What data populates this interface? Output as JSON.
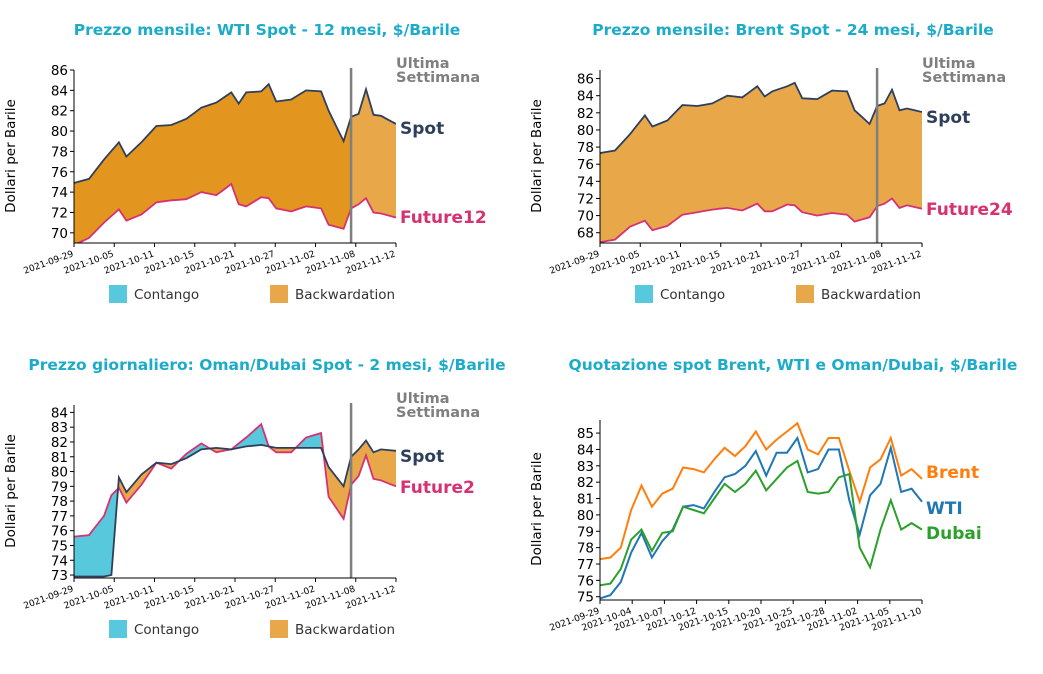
{
  "colors": {
    "title": "#1cabc8",
    "spot": "#2e3f5c",
    "future": "#d63173",
    "contango": "#58c8dc",
    "backwardation": "#e8a84a",
    "backwardation_dark": "#e3961f",
    "last_week_line": "#7f7f7f",
    "brent": "#ff7f0e",
    "wti": "#1f77b4",
    "dubai": "#2ca02c"
  },
  "legend": {
    "contango": "Contango",
    "backwardation": "Backwardation"
  },
  "chart_data": [
    {
      "type": "area",
      "title": "Prezzo mensile: WTI Spot - 12 mesi, $/Barile",
      "ylabel": "Dollari per Barile",
      "xlabel": "",
      "ylim": [
        69,
        86
      ],
      "yticks": [
        70,
        72,
        74,
        76,
        78,
        80,
        82,
        84,
        86
      ],
      "x_dates": [
        "2021-09-29",
        "2021-10-05",
        "2021-10-11",
        "2021-10-15",
        "2021-10-21",
        "2021-10-27",
        "2021-11-02",
        "2021-11-08",
        "2021-11-12"
      ],
      "marker_label": "Ultima Settimana",
      "marker_date": "2021-11-08",
      "spot_label": "Spot",
      "future_label": "Future12",
      "spot": [
        [
          0,
          74.9
        ],
        [
          2,
          75.3
        ],
        [
          4,
          77.2
        ],
        [
          6,
          78.9
        ],
        [
          7,
          77.5
        ],
        [
          9,
          78.9
        ],
        [
          11,
          80.5
        ],
        [
          13,
          80.6
        ],
        [
          15,
          81.2
        ],
        [
          17,
          82.3
        ],
        [
          19,
          82.8
        ],
        [
          21,
          83.8
        ],
        [
          22,
          82.7
        ],
        [
          23,
          83.8
        ],
        [
          25,
          83.9
        ],
        [
          26,
          84.6
        ],
        [
          27,
          82.9
        ],
        [
          29,
          83.1
        ],
        [
          31,
          84.0
        ],
        [
          33,
          83.9
        ],
        [
          34,
          82.0
        ],
        [
          36,
          79.0
        ],
        [
          37,
          81.4
        ],
        [
          38,
          81.7
        ],
        [
          39,
          84.1
        ],
        [
          40,
          81.6
        ],
        [
          41,
          81.5
        ],
        [
          43,
          80.7
        ]
      ],
      "future": [
        [
          0,
          68.8
        ],
        [
          2,
          69.5
        ],
        [
          4,
          71.0
        ],
        [
          6,
          72.3
        ],
        [
          7,
          71.2
        ],
        [
          9,
          71.8
        ],
        [
          11,
          73.0
        ],
        [
          13,
          73.2
        ],
        [
          15,
          73.3
        ],
        [
          17,
          74.0
        ],
        [
          19,
          73.7
        ],
        [
          21,
          74.8
        ],
        [
          22,
          72.8
        ],
        [
          23,
          72.6
        ],
        [
          25,
          73.5
        ],
        [
          26,
          73.4
        ],
        [
          27,
          72.4
        ],
        [
          29,
          72.1
        ],
        [
          31,
          72.6
        ],
        [
          33,
          72.4
        ],
        [
          34,
          70.8
        ],
        [
          36,
          70.4
        ],
        [
          37,
          72.4
        ],
        [
          38,
          72.8
        ],
        [
          39,
          73.4
        ],
        [
          40,
          72.0
        ],
        [
          41,
          71.9
        ],
        [
          43,
          71.5
        ]
      ]
    },
    {
      "type": "area",
      "title": "Prezzo mensile: Brent Spot - 24 mesi, $/Barile",
      "ylabel": "Dollari per Barile",
      "xlabel": "",
      "ylim": [
        66.8,
        87
      ],
      "yticks": [
        68,
        70,
        72,
        74,
        76,
        78,
        80,
        82,
        84,
        86
      ],
      "x_dates": [
        "2021-09-29",
        "2021-10-05",
        "2021-10-11",
        "2021-10-15",
        "2021-10-21",
        "2021-10-27",
        "2021-11-02",
        "2021-11-08",
        "2021-11-12"
      ],
      "marker_label": "Ultima Settimana",
      "marker_date": "2021-11-08",
      "spot_label": "Spot",
      "future_label": "Future24",
      "spot": [
        [
          0,
          77.3
        ],
        [
          2,
          77.6
        ],
        [
          4,
          79.5
        ],
        [
          6,
          81.7
        ],
        [
          7,
          80.4
        ],
        [
          9,
          81.1
        ],
        [
          11,
          82.9
        ],
        [
          13,
          82.8
        ],
        [
          15,
          83.1
        ],
        [
          17,
          84.0
        ],
        [
          19,
          83.8
        ],
        [
          21,
          85.1
        ],
        [
          22,
          83.9
        ],
        [
          23,
          84.5
        ],
        [
          25,
          85.1
        ],
        [
          26,
          85.5
        ],
        [
          27,
          83.7
        ],
        [
          29,
          83.6
        ],
        [
          31,
          84.6
        ],
        [
          33,
          84.5
        ],
        [
          34,
          82.3
        ],
        [
          36,
          80.7
        ],
        [
          37,
          82.8
        ],
        [
          38,
          83.1
        ],
        [
          39,
          84.7
        ],
        [
          40,
          82.3
        ],
        [
          41,
          82.5
        ],
        [
          43,
          82.1
        ]
      ],
      "future": [
        [
          0,
          66.9
        ],
        [
          2,
          67.2
        ],
        [
          4,
          68.7
        ],
        [
          6,
          69.4
        ],
        [
          7,
          68.3
        ],
        [
          9,
          68.8
        ],
        [
          11,
          70.1
        ],
        [
          13,
          70.4
        ],
        [
          15,
          70.7
        ],
        [
          17,
          70.9
        ],
        [
          19,
          70.6
        ],
        [
          21,
          71.4
        ],
        [
          22,
          70.5
        ],
        [
          23,
          70.5
        ],
        [
          25,
          71.3
        ],
        [
          26,
          71.2
        ],
        [
          27,
          70.4
        ],
        [
          29,
          70.0
        ],
        [
          31,
          70.3
        ],
        [
          33,
          70.1
        ],
        [
          34,
          69.3
        ],
        [
          36,
          69.8
        ],
        [
          37,
          71.1
        ],
        [
          38,
          71.4
        ],
        [
          39,
          72.0
        ],
        [
          40,
          70.9
        ],
        [
          41,
          71.2
        ],
        [
          43,
          70.8
        ]
      ]
    },
    {
      "type": "area",
      "title": "Prezzo giornaliero: Oman/Dubai Spot - 2 mesi, $/Barile",
      "ylabel": "Dollari per Barile",
      "xlabel": "",
      "ylim": [
        72.8,
        84.5
      ],
      "yticks": [
        73,
        74,
        75,
        76,
        77,
        78,
        79,
        80,
        81,
        82,
        83,
        84
      ],
      "x_dates": [
        "2021-09-29",
        "2021-10-05",
        "2021-10-11",
        "2021-10-15",
        "2021-10-21",
        "2021-10-27",
        "2021-11-02",
        "2021-11-08",
        "2021-11-12"
      ],
      "marker_label": "Ultima Settimana",
      "marker_date": "2021-11-08",
      "spot_label": "Spot",
      "future_label": "Future2",
      "spot": [
        [
          0,
          72.9
        ],
        [
          2,
          72.9
        ],
        [
          4,
          72.9
        ],
        [
          5,
          73.0
        ],
        [
          6,
          79.6
        ],
        [
          7,
          78.6
        ],
        [
          9,
          79.8
        ],
        [
          11,
          80.6
        ],
        [
          13,
          80.5
        ],
        [
          15,
          80.9
        ],
        [
          17,
          81.5
        ],
        [
          19,
          81.6
        ],
        [
          21,
          81.5
        ],
        [
          23,
          81.7
        ],
        [
          25,
          81.8
        ],
        [
          27,
          81.6
        ],
        [
          29,
          81.6
        ],
        [
          31,
          81.6
        ],
        [
          33,
          81.6
        ],
        [
          34,
          80.3
        ],
        [
          36,
          79.0
        ],
        [
          37,
          81.0
        ],
        [
          38,
          81.5
        ],
        [
          39,
          82.1
        ],
        [
          40,
          81.3
        ],
        [
          41,
          81.5
        ],
        [
          43,
          81.4
        ]
      ],
      "future": [
        [
          0,
          75.6
        ],
        [
          2,
          75.7
        ],
        [
          4,
          77.0
        ],
        [
          5,
          78.4
        ],
        [
          6,
          78.9
        ],
        [
          7,
          77.9
        ],
        [
          9,
          79.1
        ],
        [
          11,
          80.6
        ],
        [
          13,
          80.2
        ],
        [
          15,
          81.2
        ],
        [
          17,
          81.9
        ],
        [
          19,
          81.3
        ],
        [
          21,
          81.5
        ],
        [
          23,
          82.3
        ],
        [
          25,
          83.2
        ],
        [
          26,
          81.7
        ],
        [
          27,
          81.3
        ],
        [
          29,
          81.3
        ],
        [
          31,
          82.3
        ],
        [
          33,
          82.6
        ],
        [
          34,
          78.3
        ],
        [
          36,
          76.8
        ],
        [
          37,
          79.1
        ],
        [
          38,
          79.7
        ],
        [
          39,
          81.1
        ],
        [
          40,
          79.5
        ],
        [
          41,
          79.4
        ],
        [
          43,
          79.0
        ]
      ]
    },
    {
      "type": "line",
      "title": "Quotazione spot Brent, WTI e Oman/Dubai, $/Barile",
      "ylabel": "Dollari per Barile",
      "xlabel": "",
      "ylim": [
        74.8,
        85.8
      ],
      "yticks": [
        75,
        76,
        77,
        78,
        79,
        80,
        81,
        82,
        83,
        84,
        85
      ],
      "x_dates": [
        "2021-09-29",
        "2021-10-04",
        "2021-10-07",
        "2021-10-12",
        "2021-10-15",
        "2021-10-20",
        "2021-10-25",
        "2021-10-28",
        "2021-11-02",
        "2021-11-05",
        "2021-11-10"
      ],
      "series": [
        {
          "name": "Brent",
          "values": [
            [
              0,
              77.3
            ],
            [
              1,
              77.4
            ],
            [
              2,
              78.0
            ],
            [
              3,
              80.3
            ],
            [
              4,
              81.8
            ],
            [
              5,
              80.5
            ],
            [
              6,
              81.3
            ],
            [
              7,
              81.6
            ],
            [
              8,
              82.9
            ],
            [
              9,
              82.8
            ],
            [
              10,
              82.6
            ],
            [
              11,
              83.4
            ],
            [
              12,
              84.1
            ],
            [
              13,
              83.6
            ],
            [
              14,
              84.2
            ],
            [
              15,
              85.1
            ],
            [
              16,
              84.0
            ],
            [
              17,
              84.6
            ],
            [
              18,
              85.1
            ],
            [
              19,
              85.6
            ],
            [
              20,
              84.0
            ],
            [
              21,
              83.7
            ],
            [
              22,
              84.7
            ],
            [
              23,
              84.7
            ],
            [
              24,
              82.7
            ],
            [
              25,
              80.8
            ],
            [
              26,
              82.9
            ],
            [
              27,
              83.4
            ],
            [
              28,
              84.7
            ],
            [
              29,
              82.4
            ],
            [
              30,
              82.8
            ],
            [
              31,
              82.2
            ]
          ]
        },
        {
          "name": "WTI",
          "values": [
            [
              0,
              74.9
            ],
            [
              1,
              75.1
            ],
            [
              2,
              75.9
            ],
            [
              3,
              77.7
            ],
            [
              4,
              78.9
            ],
            [
              5,
              77.4
            ],
            [
              6,
              78.4
            ],
            [
              7,
              79.1
            ],
            [
              8,
              80.5
            ],
            [
              9,
              80.6
            ],
            [
              10,
              80.4
            ],
            [
              11,
              81.4
            ],
            [
              12,
              82.3
            ],
            [
              13,
              82.5
            ],
            [
              14,
              83.0
            ],
            [
              15,
              83.9
            ],
            [
              16,
              82.4
            ],
            [
              17,
              83.8
            ],
            [
              18,
              83.8
            ],
            [
              19,
              84.7
            ],
            [
              20,
              82.6
            ],
            [
              21,
              82.8
            ],
            [
              22,
              84.0
            ],
            [
              23,
              84.0
            ],
            [
              24,
              80.9
            ],
            [
              25,
              78.8
            ],
            [
              26,
              81.2
            ],
            [
              27,
              81.9
            ],
            [
              28,
              84.1
            ],
            [
              29,
              81.4
            ],
            [
              30,
              81.6
            ],
            [
              31,
              80.8
            ]
          ]
        },
        {
          "name": "Dubai",
          "values": [
            [
              0,
              75.7
            ],
            [
              1,
              75.8
            ],
            [
              2,
              76.7
            ],
            [
              3,
              78.5
            ],
            [
              4,
              79.1
            ],
            [
              5,
              77.8
            ],
            [
              6,
              78.9
            ],
            [
              7,
              79.0
            ],
            [
              8,
              80.5
            ],
            [
              9,
              80.3
            ],
            [
              10,
              80.1
            ],
            [
              11,
              81.0
            ],
            [
              12,
              81.9
            ],
            [
              13,
              81.4
            ],
            [
              14,
              81.9
            ],
            [
              15,
              82.7
            ],
            [
              16,
              81.5
            ],
            [
              17,
              82.2
            ],
            [
              18,
              82.9
            ],
            [
              19,
              83.3
            ],
            [
              20,
              81.4
            ],
            [
              21,
              81.3
            ],
            [
              22,
              81.4
            ],
            [
              23,
              82.3
            ],
            [
              24,
              82.5
            ],
            [
              25,
              78.0
            ],
            [
              26,
              76.8
            ],
            [
              27,
              79.1
            ],
            [
              28,
              80.9
            ],
            [
              29,
              79.1
            ],
            [
              30,
              79.5
            ],
            [
              31,
              79.1
            ]
          ]
        }
      ]
    }
  ]
}
